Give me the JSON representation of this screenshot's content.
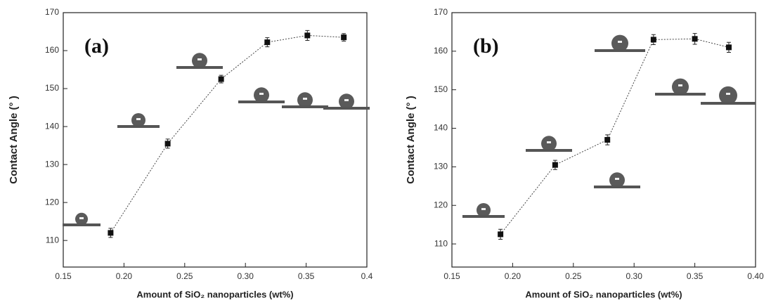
{
  "chart_data": [
    {
      "type": "scatter-line",
      "annotation": "(a)",
      "y_label": "Contact Angle (° )",
      "x_label": "Amount of SiO₂ nanoparticles (wt%)",
      "x": [
        0.189,
        0.236,
        0.28,
        0.318,
        0.351,
        0.381
      ],
      "values": [
        112,
        135.5,
        152.5,
        162.2,
        164,
        163.5
      ],
      "errors": [
        1.2,
        1.2,
        1,
        1.2,
        1.3,
        1
      ],
      "color": "#111111",
      "xlim": [
        0.15,
        0.4
      ],
      "xticks": [
        0.15,
        {
          "value": 0.2,
          "label": "0.20"
        },
        0.25,
        {
          "value": 0.3,
          "label": "0.30"
        },
        0.35,
        0.4
      ],
      "ylim": [
        103,
        170
      ],
      "yticks": [
        110,
        120,
        130,
        140,
        150,
        160,
        170
      ]
    },
    {
      "type": "scatter-line",
      "annotation": "(b)",
      "y_label": "Contact Angle (° )",
      "x_label": "Amount of SiO₂ nanoparticles (wt%)",
      "x": [
        0.19,
        0.235,
        0.278,
        0.316,
        0.35,
        0.378
      ],
      "values": [
        112.5,
        130.5,
        137,
        163,
        163.2,
        161
      ],
      "errors": [
        1.3,
        1.2,
        1.3,
        1.3,
        1.4,
        1.3
      ],
      "color": "#111111",
      "xlim": [
        0.15,
        0.4
      ],
      "xticks": [
        0.15,
        {
          "value": 0.2,
          "label": "0.20"
        },
        0.25,
        {
          "value": 0.3,
          "label": "0.30"
        },
        0.35,
        {
          "value": 0.4,
          "label": "0.40"
        }
      ],
      "ylim": [
        104,
        170
      ],
      "yticks": [
        110,
        120,
        130,
        140,
        150,
        160,
        170
      ]
    }
  ]
}
